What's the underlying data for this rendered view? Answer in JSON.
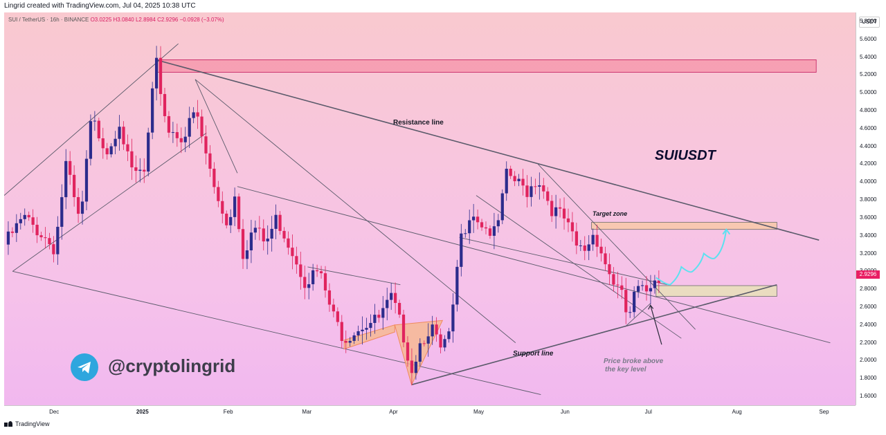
{
  "header": {
    "credit": "Lingrid created with TradingView.com, Jul 04, 2025 10:38 UTC"
  },
  "legend": {
    "symbol": "SUI / TetherUS · 16h · BINANCE",
    "ohlc": "O3.0225 H3.0840 L2.8984 C2.9296 −0.0928 (−3.07%)"
  },
  "price_axis": {
    "unit": "USDT",
    "last_price": "2.9296"
  },
  "annotations": {
    "ticker": "SUIUSDT",
    "resistance_line": "Resistance line",
    "support_line": "Support line",
    "target_zone": "Target zone",
    "note_line1": "Price broke above",
    "note_line2": "the key level"
  },
  "watermark": {
    "handle": "@cryptolingrid"
  },
  "footer": {
    "brand": "TradingView"
  },
  "colors": {
    "up": "#2c2c8c",
    "down": "#e0245e",
    "zone_red": "#f593a8",
    "zone_orange": "#f8c9a8",
    "zone_green": "#e8e0b8",
    "arrow": "#5ce1f0",
    "last_price_bg": "#e91e63"
  },
  "chart_data": {
    "type": "candlestick",
    "ylim": [
      1.5,
      5.9
    ],
    "y_ticks": [
      1.6,
      1.8,
      2.0,
      2.2,
      2.4,
      2.6,
      2.8,
      3.0,
      3.2,
      3.4,
      3.6,
      3.8,
      4.0,
      4.2,
      4.4,
      4.6,
      4.8,
      5.0,
      5.2,
      5.4,
      5.6,
      5.8
    ],
    "y_tick_labels": [
      "1.6000",
      "1.8000",
      "2.0000",
      "2.2000",
      "2.4000",
      "2.6000",
      "2.8000",
      "3.0000",
      "3.2000",
      "3.4000",
      "3.6000",
      "3.8000",
      "4.0000",
      "4.2000",
      "4.4000",
      "4.6000",
      "4.8000",
      "5.0000",
      "5.2000",
      "5.4000",
      "5.6000",
      "5.8000"
    ],
    "x_ticks": [
      "Dec",
      "2025",
      "Feb",
      "Mar",
      "Apr",
      "May",
      "Jun",
      "Jul",
      "Aug",
      "Sep"
    ],
    "x_range": [
      "2024-11-13",
      "2025-09-12"
    ],
    "x_tick_dates": [
      "2024-12-01",
      "2025-01-01",
      "2025-02-01",
      "2025-03-01",
      "2025-04-01",
      "2025-05-01",
      "2025-06-01",
      "2025-07-01",
      "2025-08-01",
      "2025-09-01"
    ],
    "trend_points": [
      [
        "2024-11-13",
        3.3
      ],
      [
        "2024-11-20",
        3.6
      ],
      [
        "2024-11-27",
        3.4
      ],
      [
        "2024-12-01",
        3.25
      ],
      [
        "2024-12-05",
        4.2
      ],
      [
        "2024-12-10",
        3.5
      ],
      [
        "2024-12-14",
        4.7
      ],
      [
        "2024-12-20",
        4.35
      ],
      [
        "2024-12-24",
        4.7
      ],
      [
        "2024-12-28",
        4.1
      ],
      [
        "2025-01-02",
        4.1
      ],
      [
        "2025-01-06",
        5.35
      ],
      [
        "2025-01-10",
        4.6
      ],
      [
        "2025-01-16",
        4.5
      ],
      [
        "2025-01-20",
        4.8
      ],
      [
        "2025-01-27",
        3.9
      ],
      [
        "2025-02-01",
        3.5
      ],
      [
        "2025-02-03",
        3.9
      ],
      [
        "2025-02-06",
        3.2
      ],
      [
        "2025-02-10",
        3.5
      ],
      [
        "2025-02-14",
        3.3
      ],
      [
        "2025-02-18",
        3.6
      ],
      [
        "2025-02-24",
        3.2
      ],
      [
        "2025-02-28",
        2.9
      ],
      [
        "2025-03-05",
        3.0
      ],
      [
        "2025-03-10",
        2.5
      ],
      [
        "2025-03-14",
        2.25
      ],
      [
        "2025-03-20",
        2.4
      ],
      [
        "2025-03-26",
        2.45
      ],
      [
        "2025-03-31",
        2.7
      ],
      [
        "2025-04-04",
        2.3
      ],
      [
        "2025-04-07",
        1.9
      ],
      [
        "2025-04-10",
        2.2
      ],
      [
        "2025-04-14",
        2.4
      ],
      [
        "2025-04-17",
        2.1
      ],
      [
        "2025-04-21",
        2.3
      ],
      [
        "2025-04-24",
        3.3
      ],
      [
        "2025-04-28",
        3.7
      ],
      [
        "2025-05-03",
        3.5
      ],
      [
        "2025-05-07",
        3.4
      ],
      [
        "2025-05-11",
        4.1
      ],
      [
        "2025-05-14",
        4.0
      ],
      [
        "2025-05-18",
        3.9
      ],
      [
        "2025-05-22",
        4.05
      ],
      [
        "2025-05-27",
        3.7
      ],
      [
        "2025-05-31",
        3.6
      ],
      [
        "2025-06-05",
        3.25
      ],
      [
        "2025-06-08",
        3.25
      ],
      [
        "2025-06-11",
        3.45
      ],
      [
        "2025-06-16",
        3.0
      ],
      [
        "2025-06-21",
        2.7
      ],
      [
        "2025-06-23",
        2.45
      ],
      [
        "2025-06-26",
        2.8
      ],
      [
        "2025-06-29",
        2.75
      ],
      [
        "2025-07-01",
        2.85
      ],
      [
        "2025-07-03",
        3.0
      ],
      [
        "2025-07-04",
        2.93
      ]
    ],
    "zones": [
      {
        "label": "",
        "from": "2025-01-06",
        "to": "2025-08-29",
        "low": 5.23,
        "high": 5.37
      },
      {
        "label": "Target zone",
        "from": "2025-06-10",
        "to": "2025-08-15",
        "low": 3.47,
        "high": 3.55
      },
      {
        "label": "",
        "from": "2025-07-03",
        "to": "2025-08-15",
        "low": 2.72,
        "high": 2.84
      }
    ],
    "lines": [
      {
        "label": "Resistance line",
        "points": [
          [
            "2025-01-06",
            5.37
          ],
          [
            "2025-08-30",
            3.35
          ]
        ]
      },
      {
        "label": "Support line",
        "points": [
          [
            "2025-04-07",
            1.73
          ],
          [
            "2025-08-15",
            2.85
          ]
        ]
      }
    ],
    "projection": [
      [
        "2025-07-03",
        2.93
      ],
      [
        "2025-07-08",
        2.85
      ],
      [
        "2025-07-12",
        3.05
      ],
      [
        "2025-07-16",
        3.0
      ],
      [
        "2025-07-20",
        3.2
      ],
      [
        "2025-07-24",
        3.15
      ],
      [
        "2025-07-28",
        3.47
      ]
    ]
  }
}
